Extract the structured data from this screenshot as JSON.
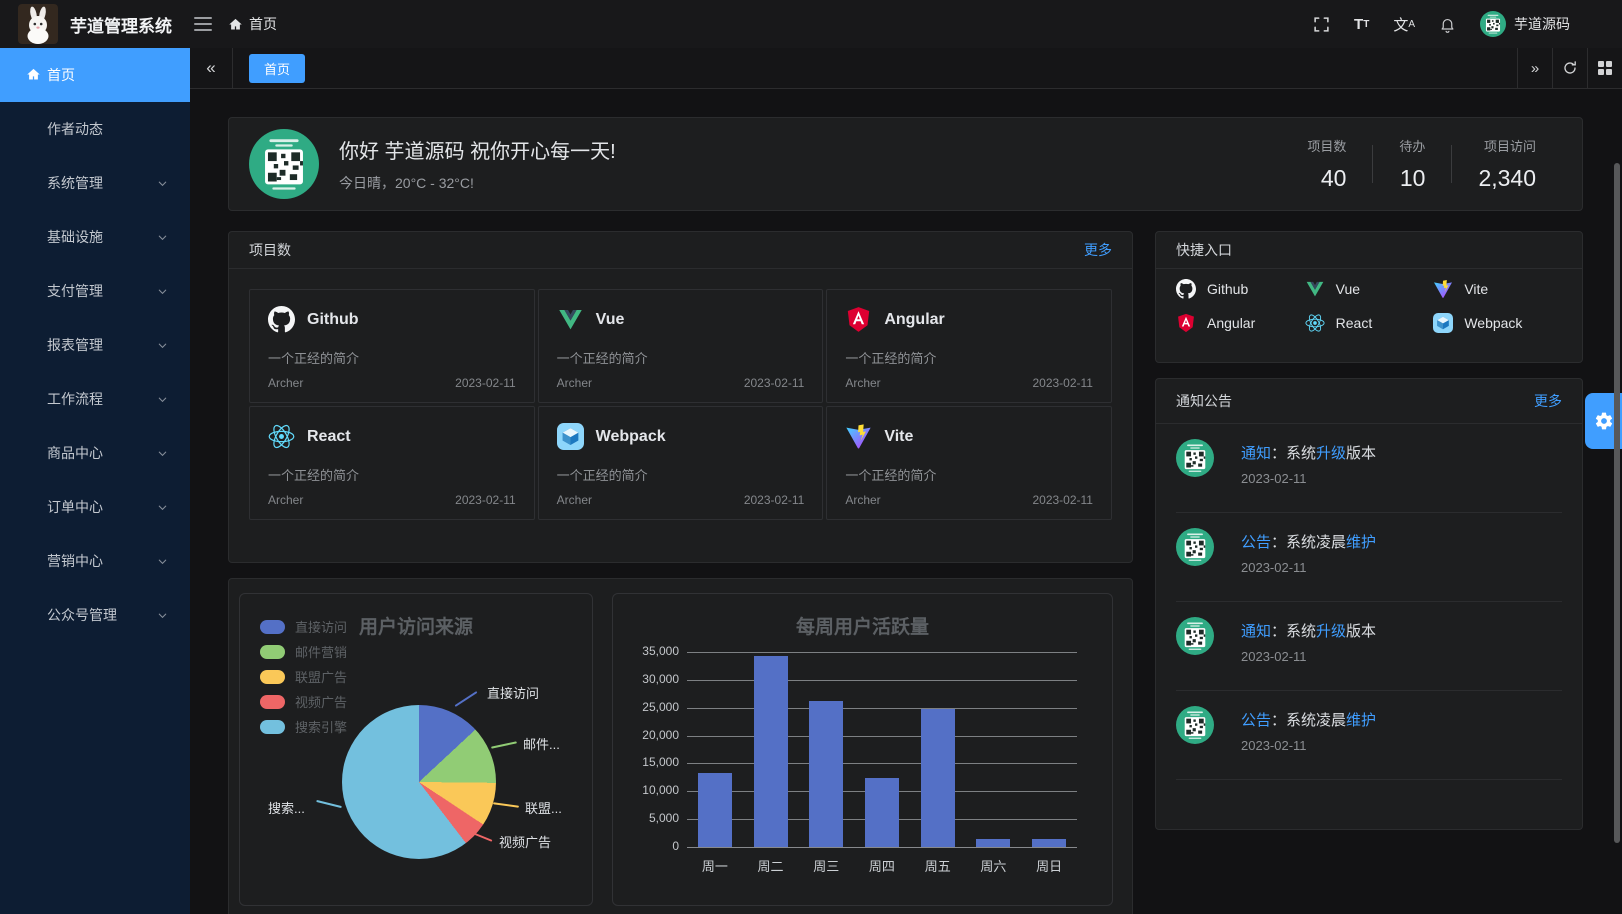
{
  "navbar": {
    "title": "芋道管理系统",
    "breadcrumb": "首页",
    "username": "芋道源码"
  },
  "sidebar": {
    "items": [
      {
        "label": "首页",
        "active": true,
        "has_children": false
      },
      {
        "label": "作者动态",
        "has_children": false
      },
      {
        "label": "系统管理",
        "has_children": true
      },
      {
        "label": "基础设施",
        "has_children": true
      },
      {
        "label": "支付管理",
        "has_children": true
      },
      {
        "label": "报表管理",
        "has_children": true
      },
      {
        "label": "工作流程",
        "has_children": true
      },
      {
        "label": "商品中心",
        "has_children": true
      },
      {
        "label": "订单中心",
        "has_children": true
      },
      {
        "label": "营销中心",
        "has_children": true
      },
      {
        "label": "公众号管理",
        "has_children": true
      }
    ]
  },
  "tabbar": {
    "tabs": [
      {
        "label": "首页",
        "active": true
      }
    ]
  },
  "welcome": {
    "greeting": "你好 芋道源码 祝你开心每一天!",
    "weather": "今日晴，20°C - 32°C!",
    "stats": [
      {
        "label": "项目数",
        "value": "40"
      },
      {
        "label": "待办",
        "value": "10"
      },
      {
        "label": "项目访问",
        "value": "2,340"
      }
    ]
  },
  "projects_panel": {
    "title": "项目数",
    "more": "更多",
    "projects": [
      {
        "name": "Github",
        "icon": "github-icon",
        "desc": "一个正经的简介",
        "author": "Archer",
        "date": "2023-02-11"
      },
      {
        "name": "Vue",
        "icon": "vue-icon",
        "desc": "一个正经的简介",
        "author": "Archer",
        "date": "2023-02-11"
      },
      {
        "name": "Angular",
        "icon": "angular-icon",
        "desc": "一个正经的简介",
        "author": "Archer",
        "date": "2023-02-11"
      },
      {
        "name": "React",
        "icon": "react-icon",
        "desc": "一个正经的简介",
        "author": "Archer",
        "date": "2023-02-11"
      },
      {
        "name": "Webpack",
        "icon": "webpack-icon",
        "desc": "一个正经的简介",
        "author": "Archer",
        "date": "2023-02-11"
      },
      {
        "name": "Vite",
        "icon": "vite-icon",
        "desc": "一个正经的简介",
        "author": "Archer",
        "date": "2023-02-11"
      }
    ]
  },
  "shortcuts_panel": {
    "title": "快捷入口",
    "items": [
      {
        "label": "Github",
        "icon": "github-icon"
      },
      {
        "label": "Vue",
        "icon": "vue-icon"
      },
      {
        "label": "Vite",
        "icon": "vite-icon"
      },
      {
        "label": "Angular",
        "icon": "angular-icon"
      },
      {
        "label": "React",
        "icon": "react-icon"
      },
      {
        "label": "Webpack",
        "icon": "webpack-icon"
      }
    ]
  },
  "notice_panel": {
    "title": "通知公告",
    "more": "更多",
    "items": [
      {
        "tag": "通知",
        "t1": "：系统",
        "hl": "升级",
        "t2": "版本",
        "date": "2023-02-11"
      },
      {
        "tag": "公告",
        "t1": "：系统凌晨",
        "hl": "维护",
        "t2": "",
        "date": "2023-02-11"
      },
      {
        "tag": "通知",
        "t1": "：系统",
        "hl": "升级",
        "t2": "版本",
        "date": "2023-02-11"
      },
      {
        "tag": "公告",
        "t1": "：系统凌晨",
        "hl": "维护",
        "t2": "",
        "date": "2023-02-11"
      }
    ]
  },
  "chart_data": [
    {
      "type": "pie",
      "title": "用户访问来源",
      "legend_position": "top-left",
      "legend": [
        "直接访问",
        "邮件营销",
        "联盟广告",
        "视频广告",
        "搜索引擎"
      ],
      "series": [
        {
          "name": "直接访问",
          "value": 335,
          "color": "#5470c6"
        },
        {
          "name": "邮件营销",
          "value": 310,
          "color": "#91cc75"
        },
        {
          "name": "联盟广告",
          "value": 234,
          "color": "#fac858"
        },
        {
          "name": "视频广告",
          "value": 135,
          "color": "#ee6666"
        },
        {
          "name": "搜索引擎",
          "value": 1548,
          "color": "#73c0de"
        }
      ],
      "callouts": [
        "直接访问",
        "邮件...",
        "联盟...",
        "视频广告",
        "搜索..."
      ]
    },
    {
      "type": "bar",
      "title": "每周用户活跃量",
      "categories": [
        "周一",
        "周二",
        "周三",
        "周四",
        "周五",
        "周六",
        "周日"
      ],
      "values": [
        13300,
        34300,
        26300,
        12400,
        24700,
        1400,
        1400
      ],
      "ylim": [
        0,
        35000
      ],
      "ytick_step": 5000,
      "bar_color": "#5470c6",
      "grid": true,
      "legend_position": "none"
    }
  ]
}
